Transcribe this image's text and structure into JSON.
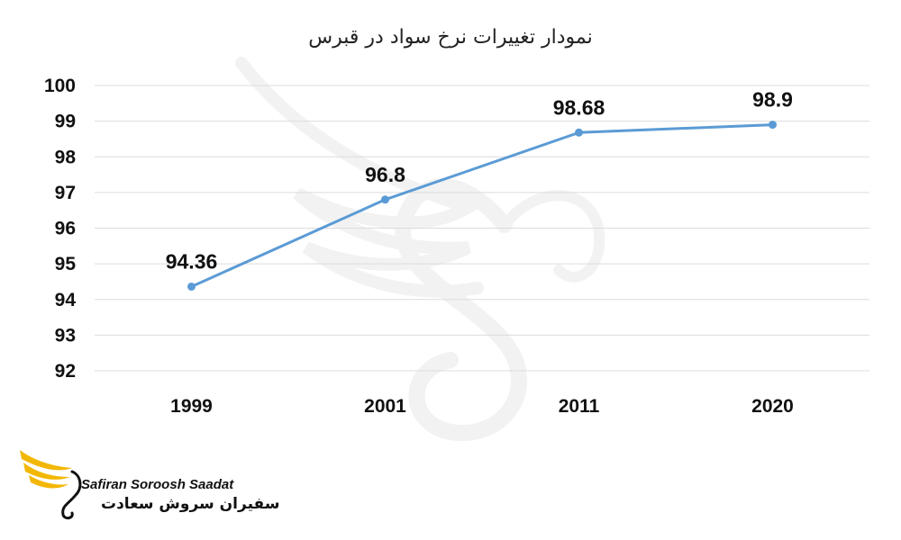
{
  "chart_data": {
    "type": "line",
    "title": "نمودار تغییرات نرخ سواد در قبرس",
    "categories": [
      "1999",
      "2001",
      "2011",
      "2020"
    ],
    "series": [
      {
        "values": [
          94.36,
          96.8,
          98.68,
          98.9
        ],
        "color": "#5b9bd5"
      }
    ],
    "data_labels": [
      "94.36",
      "96.8",
      "98.68",
      "98.9"
    ],
    "ylim": [
      92,
      100
    ],
    "yticks": [
      "92",
      "93",
      "94",
      "95",
      "96",
      "97",
      "98",
      "99",
      "100"
    ],
    "grid": true,
    "legend": "none"
  },
  "logo": {
    "text_en": "Safiran Soroosh Saadat",
    "text_fa": "سفیران سروش سعادت",
    "wing_color": "#f2b705",
    "watermark_color": "#eeeeee"
  }
}
